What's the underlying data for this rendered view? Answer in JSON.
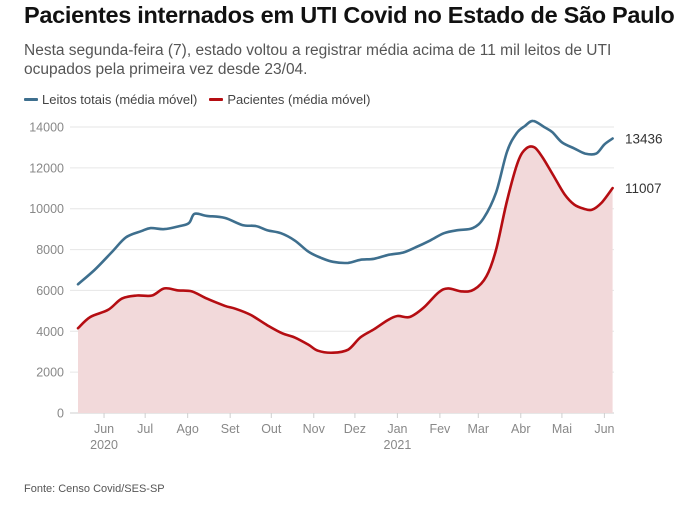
{
  "header": {
    "title": "Pacientes internados em UTI Covid no Estado de São Paulo",
    "subtitle": "Nesta segunda-feira (7), estado voltou a registrar média acima de 11 mil leitos de UTI ocupados pela primeira vez desde 23/04."
  },
  "legend": {
    "items": [
      {
        "label": "Leitos totais (média móvel)",
        "color": "#3e6f8e"
      },
      {
        "label": "Pacientes (média móvel)",
        "color": "#b50d12"
      }
    ]
  },
  "source": "Fonte: Censo Covid/SES-SP",
  "chart_data": {
    "type": "line",
    "ylim": [
      0,
      14000
    ],
    "yticks": [
      0,
      2000,
      4000,
      6000,
      8000,
      10000,
      12000,
      14000
    ],
    "xlim": [
      "2020-05-13",
      "2021-06-08"
    ],
    "xticks": [
      {
        "date": "2020-06-01",
        "label": "Jun",
        "year": "2020"
      },
      {
        "date": "2020-07-01",
        "label": "Jul",
        "year": ""
      },
      {
        "date": "2020-08-01",
        "label": "Ago",
        "year": ""
      },
      {
        "date": "2020-09-01",
        "label": "Set",
        "year": ""
      },
      {
        "date": "2020-10-01",
        "label": "Out",
        "year": ""
      },
      {
        "date": "2020-11-01",
        "label": "Nov",
        "year": ""
      },
      {
        "date": "2020-12-01",
        "label": "Dez",
        "year": ""
      },
      {
        "date": "2021-01-01",
        "label": "Jan",
        "year": "2021"
      },
      {
        "date": "2021-02-01",
        "label": "Fev",
        "year": ""
      },
      {
        "date": "2021-03-01",
        "label": "Mar",
        "year": ""
      },
      {
        "date": "2021-04-01",
        "label": "Abr",
        "year": ""
      },
      {
        "date": "2021-05-01",
        "label": "Mai",
        "year": ""
      },
      {
        "date": "2021-06-01",
        "label": "Jun",
        "year": ""
      }
    ],
    "grid": true,
    "legend_position": "top-left",
    "series": [
      {
        "name": "Leitos totais (média móvel)",
        "color": "#3e6f8e",
        "end_label": "13436",
        "points": [
          [
            "2020-05-13",
            6300
          ],
          [
            "2020-05-25",
            7000
          ],
          [
            "2020-06-07",
            7900
          ],
          [
            "2020-06-17",
            8600
          ],
          [
            "2020-06-28",
            8900
          ],
          [
            "2020-07-05",
            9050
          ],
          [
            "2020-07-15",
            9000
          ],
          [
            "2020-07-26",
            9150
          ],
          [
            "2020-08-02",
            9300
          ],
          [
            "2020-08-06",
            9750
          ],
          [
            "2020-08-15",
            9650
          ],
          [
            "2020-08-28",
            9550
          ],
          [
            "2020-09-10",
            9200
          ],
          [
            "2020-09-20",
            9150
          ],
          [
            "2020-09-28",
            8950
          ],
          [
            "2020-10-08",
            8800
          ],
          [
            "2020-10-18",
            8450
          ],
          [
            "2020-10-28",
            7900
          ],
          [
            "2020-11-06",
            7600
          ],
          [
            "2020-11-15",
            7400
          ],
          [
            "2020-11-26",
            7350
          ],
          [
            "2020-12-05",
            7500
          ],
          [
            "2020-12-15",
            7550
          ],
          [
            "2020-12-26",
            7750
          ],
          [
            "2021-01-05",
            7850
          ],
          [
            "2021-01-14",
            8100
          ],
          [
            "2021-01-25",
            8450
          ],
          [
            "2021-02-04",
            8800
          ],
          [
            "2021-02-14",
            8950
          ],
          [
            "2021-02-25",
            9050
          ],
          [
            "2021-03-05",
            9550
          ],
          [
            "2021-03-14",
            10800
          ],
          [
            "2021-03-22",
            12800
          ],
          [
            "2021-03-29",
            13700
          ],
          [
            "2021-04-04",
            14050
          ],
          [
            "2021-04-10",
            14300
          ],
          [
            "2021-04-18",
            14000
          ],
          [
            "2021-04-24",
            13750
          ],
          [
            "2021-05-01",
            13250
          ],
          [
            "2021-05-10",
            12950
          ],
          [
            "2021-05-18",
            12700
          ],
          [
            "2021-05-26",
            12700
          ],
          [
            "2021-06-01",
            13150
          ],
          [
            "2021-06-07",
            13436
          ]
        ]
      },
      {
        "name": "Pacientes (média móvel)",
        "color": "#b50d12",
        "end_label": "11007",
        "points": [
          [
            "2020-05-13",
            4150
          ],
          [
            "2020-05-22",
            4700
          ],
          [
            "2020-06-04",
            5050
          ],
          [
            "2020-06-14",
            5600
          ],
          [
            "2020-06-25",
            5750
          ],
          [
            "2020-07-06",
            5750
          ],
          [
            "2020-07-15",
            6100
          ],
          [
            "2020-07-25",
            6000
          ],
          [
            "2020-08-04",
            5950
          ],
          [
            "2020-08-15",
            5600
          ],
          [
            "2020-08-28",
            5250
          ],
          [
            "2020-09-05",
            5100
          ],
          [
            "2020-09-16",
            4800
          ],
          [
            "2020-09-28",
            4300
          ],
          [
            "2020-10-09",
            3900
          ],
          [
            "2020-10-18",
            3700
          ],
          [
            "2020-10-28",
            3350
          ],
          [
            "2020-11-04",
            3050
          ],
          [
            "2020-11-15",
            2950
          ],
          [
            "2020-11-26",
            3100
          ],
          [
            "2020-12-05",
            3700
          ],
          [
            "2020-12-15",
            4100
          ],
          [
            "2020-12-25",
            4550
          ],
          [
            "2021-01-01",
            4750
          ],
          [
            "2021-01-10",
            4700
          ],
          [
            "2021-01-20",
            5150
          ],
          [
            "2021-01-31",
            5900
          ],
          [
            "2021-02-07",
            6100
          ],
          [
            "2021-02-17",
            5950
          ],
          [
            "2021-02-26",
            6050
          ],
          [
            "2021-03-07",
            6700
          ],
          [
            "2021-03-14",
            8000
          ],
          [
            "2021-03-22",
            10400
          ],
          [
            "2021-03-30",
            12300
          ],
          [
            "2021-04-05",
            12950
          ],
          [
            "2021-04-11",
            13000
          ],
          [
            "2021-04-17",
            12500
          ],
          [
            "2021-04-25",
            11600
          ],
          [
            "2021-05-03",
            10700
          ],
          [
            "2021-05-10",
            10200
          ],
          [
            "2021-05-17",
            10000
          ],
          [
            "2021-05-23",
            9950
          ],
          [
            "2021-05-30",
            10300
          ],
          [
            "2021-06-07",
            11007
          ]
        ]
      }
    ],
    "area_fill_color": "#f2d9da"
  }
}
